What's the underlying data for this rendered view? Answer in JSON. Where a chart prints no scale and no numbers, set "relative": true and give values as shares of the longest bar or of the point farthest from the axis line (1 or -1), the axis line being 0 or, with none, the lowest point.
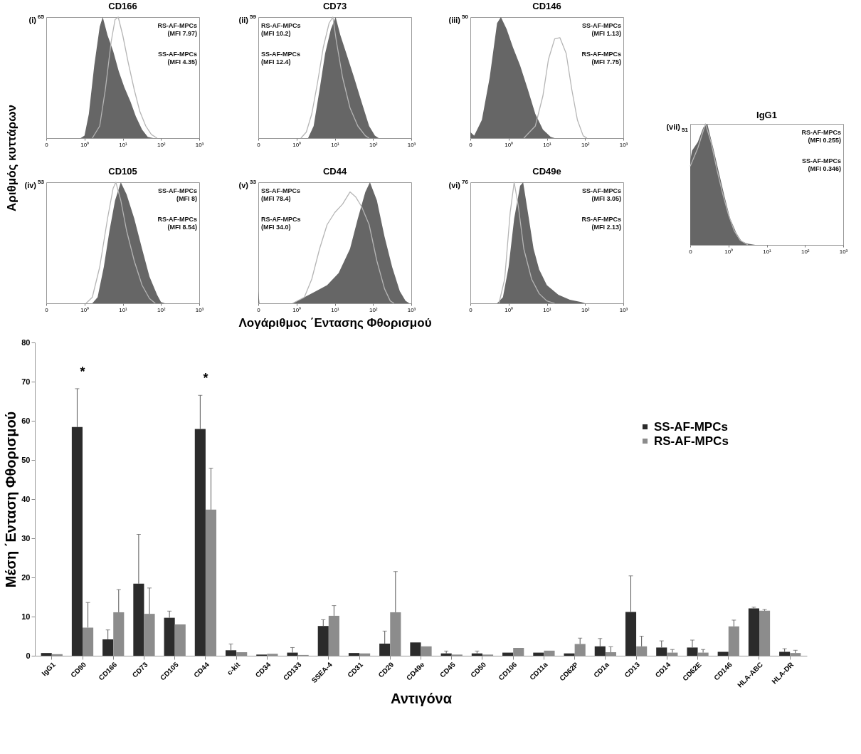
{
  "chart_data": [
    {
      "type": "area",
      "title": "CD166",
      "relative": true,
      "log": "x",
      "ylabel": "Αριθμός κυττάρων",
      "xlim": [
        0.1,
        1000
      ],
      "xticks": [
        {
          "value": 0.1,
          "label": "0"
        },
        {
          "value": 1,
          "label": "10⁰"
        },
        {
          "value": 10,
          "label": "10¹"
        },
        {
          "value": 100,
          "label": "10²"
        },
        {
          "value": 1000,
          "label": "10³"
        }
      ],
      "series": [
        {
          "color": "#666666",
          "x": [
            0.79,
            1,
            1.3,
            1.8,
            2.5,
            3,
            4,
            5.6,
            7.9,
            11,
            16,
            22,
            32,
            45,
            63
          ],
          "values": [
            0,
            0.02,
            0.2,
            0.6,
            0.92,
            1,
            0.85,
            0.72,
            0.55,
            0.42,
            0.3,
            0.18,
            0.07,
            0.01,
            0
          ]
        },
        {
          "type": "line",
          "color": "#b5b5b5",
          "x": [
            1.6,
            2.5,
            3.5,
            5,
            6.3,
            7.6,
            10,
            14,
            20,
            28,
            40,
            56,
            79
          ],
          "values": [
            0,
            0.1,
            0.4,
            0.8,
            0.98,
            1,
            0.85,
            0.62,
            0.4,
            0.22,
            0.1,
            0.03,
            0
          ]
        }
      ],
      "annotations": [
        "(i)$^{65}$",
        "RS-AF-MPCs\n(MFI 7.97)",
        "SS-AF-MPCs\n(MFI 4.35)"
      ]
    },
    {
      "type": "area",
      "title": "CD73",
      "relative": true,
      "log": "x",
      "xlim": [
        0.1,
        1000
      ],
      "xticks": [
        {
          "value": 0.1,
          "label": "0"
        },
        {
          "value": 1,
          "label": "10⁰"
        },
        {
          "value": 10,
          "label": "10¹"
        },
        {
          "value": 100,
          "label": "10²"
        },
        {
          "value": 1000,
          "label": "10³"
        }
      ],
      "series": [
        {
          "color": "#666666",
          "x": [
            2,
            2.8,
            4,
            5.6,
            7.9,
            10.5,
            14,
            20,
            32,
            50,
            79,
            112,
            141
          ],
          "values": [
            0,
            0.1,
            0.4,
            0.7,
            0.9,
            1,
            0.85,
            0.7,
            0.5,
            0.3,
            0.1,
            0.02,
            0
          ]
        },
        {
          "type": "line",
          "color": "#b5b5b5",
          "x": [
            1.3,
            1.8,
            2.5,
            3.5,
            5,
            7.1,
            8.9,
            11,
            16,
            25,
            40,
            63,
            79
          ],
          "values": [
            0,
            0.05,
            0.2,
            0.45,
            0.75,
            0.95,
            1,
            0.8,
            0.5,
            0.25,
            0.1,
            0.02,
            0
          ]
        }
      ],
      "annotations": [
        "(ii)$^{59}$",
        "RS-AF-MPCs\n(MFI 10.2)",
        "SS-AF-MPCs\n(MFI 12.4)"
      ]
    },
    {
      "type": "area",
      "title": "CD146",
      "relative": true,
      "log": "x",
      "xlim": [
        0.1,
        1000
      ],
      "xticks": [
        {
          "value": 0.1,
          "label": "0"
        },
        {
          "value": 1,
          "label": "10⁰"
        },
        {
          "value": 10,
          "label": "10¹"
        },
        {
          "value": 100,
          "label": "10²"
        },
        {
          "value": 1000,
          "label": "10³"
        }
      ],
      "series": [
        {
          "color": "#666666",
          "x": [
            0.1,
            0.126,
            0.2,
            0.32,
            0.5,
            0.63,
            0.89,
            1.3,
            2,
            3.2,
            5,
            7.9,
            12.6,
            16
          ],
          "values": [
            0.05,
            0.02,
            0.15,
            0.5,
            0.95,
            1,
            0.9,
            0.75,
            0.6,
            0.4,
            0.2,
            0.07,
            0.01,
            0
          ]
        },
        {
          "type": "line",
          "color": "#b5b5b5",
          "x": [
            2.5,
            5,
            7.9,
            11,
            16,
            22,
            32,
            45,
            63,
            89,
            112
          ],
          "values": [
            0,
            0.1,
            0.35,
            0.65,
            0.82,
            0.83,
            0.7,
            0.4,
            0.15,
            0.02,
            0
          ]
        }
      ],
      "annotations": [
        "(iii)$^{50}$",
        "SS-AF-MPCs\n(MFI 1.13)",
        "RS-AF-MPCs\n(MFI 7.75)"
      ]
    },
    {
      "type": "area",
      "title": "CD105",
      "relative": true,
      "log": "x",
      "xlim": [
        0.1,
        1000
      ],
      "xticks": [
        {
          "value": 0.1,
          "label": "0"
        },
        {
          "value": 1,
          "label": "10⁰"
        },
        {
          "value": 10,
          "label": "10¹"
        },
        {
          "value": 100,
          "label": "10²"
        },
        {
          "value": 1000,
          "label": "10³"
        }
      ],
      "series": [
        {
          "color": "#666666",
          "x": [
            1.6,
            2.2,
            3.2,
            4.5,
            6.3,
            8.9,
            12.6,
            20,
            32,
            50,
            79,
            100,
            126
          ],
          "values": [
            0,
            0.05,
            0.3,
            0.6,
            0.85,
            1,
            0.9,
            0.7,
            0.45,
            0.22,
            0.07,
            0.01,
            0
          ]
        },
        {
          "type": "line",
          "color": "#b5b5b5",
          "x": [
            1.1,
            1.6,
            2.5,
            4,
            5.6,
            6.6,
            8.9,
            12.6,
            20,
            32,
            50,
            71
          ],
          "values": [
            0,
            0.05,
            0.3,
            0.7,
            0.95,
            1,
            0.85,
            0.6,
            0.35,
            0.15,
            0.04,
            0
          ]
        }
      ],
      "annotations": [
        "(iv)$^{53}$",
        "SS-AF-MPCs\n(MFI 8)",
        "RS-AF-MPCs\n(MFI 8.54)"
      ]
    },
    {
      "type": "area",
      "title": "CD44",
      "relative": true,
      "log": "x",
      "xlabel": "Λογάριθμος ΄Εντασης Φθορισμού",
      "xlim": [
        0.1,
        1000
      ],
      "xticks": [
        {
          "value": 0.1,
          "label": "0"
        },
        {
          "value": 1,
          "label": "10⁰"
        },
        {
          "value": 10,
          "label": "10¹"
        },
        {
          "value": 100,
          "label": "10²"
        },
        {
          "value": 1000,
          "label": "10³"
        }
      ],
      "series": [
        {
          "color": "#666666",
          "x": [
            0.1,
            0.107,
            0.79,
            1.6,
            3.2,
            6.3,
            12.6,
            25,
            40,
            63,
            83,
            126,
            200,
            316,
            501,
            708,
            891
          ],
          "values": [
            0.1,
            0,
            0,
            0.05,
            0.1,
            0.15,
            0.25,
            0.45,
            0.7,
            0.92,
            1,
            0.85,
            0.55,
            0.3,
            0.1,
            0.02,
            0
          ]
        },
        {
          "type": "line",
          "color": "#b5b5b5",
          "x": [
            0.79,
            1.6,
            2.5,
            4,
            6.3,
            10,
            16,
            25,
            35,
            50,
            79,
            126,
            200,
            282,
            355
          ],
          "values": [
            0,
            0.05,
            0.2,
            0.45,
            0.65,
            0.75,
            0.82,
            0.92,
            0.88,
            0.8,
            0.65,
            0.35,
            0.12,
            0.02,
            0
          ]
        }
      ],
      "annotations": [
        "(v)$^{33}$",
        "SS-AF-MPCs\n(MFI 78.4)",
        "RS-AF-MPCs\n(MFI 34.0)"
      ]
    },
    {
      "type": "area",
      "title": "CD49e",
      "relative": true,
      "log": "x",
      "xlim": [
        0.1,
        1000
      ],
      "xticks": [
        {
          "value": 0.1,
          "label": "0"
        },
        {
          "value": 1,
          "label": "10⁰"
        },
        {
          "value": 10,
          "label": "10¹"
        },
        {
          "value": 100,
          "label": "10²"
        },
        {
          "value": 1000,
          "label": "10³"
        }
      ],
      "series": [
        {
          "color": "#666666",
          "x": [
            0.5,
            0.71,
            1,
            1.4,
            2,
            2.4,
            3.2,
            4.5,
            6.3,
            10,
            20,
            40,
            79,
            100
          ],
          "values": [
            0,
            0.05,
            0.3,
            0.7,
            0.97,
            1,
            0.75,
            0.45,
            0.28,
            0.15,
            0.07,
            0.03,
            0.01,
            0
          ]
        },
        {
          "type": "line",
          "color": "#b5b5b5",
          "x": [
            0.56,
            0.79,
            1.1,
            1.4,
            1.8,
            2.5,
            4,
            6.3,
            10,
            16
          ],
          "values": [
            0,
            0.2,
            0.75,
            1,
            0.8,
            0.45,
            0.2,
            0.08,
            0.02,
            0
          ]
        }
      ],
      "annotations": [
        "(vi)$^{76}$",
        "SS-AF-MPCs\n(MFI 3.05)",
        "RS-AF-MPCs\n(MFI 2.13)"
      ]
    },
    {
      "type": "area",
      "title": "IgG1",
      "relative": true,
      "log": "x",
      "xlim": [
        0.1,
        1000
      ],
      "xticks": [
        {
          "value": 0.1,
          "label": "0"
        },
        {
          "value": 1,
          "label": "10⁰"
        },
        {
          "value": 10,
          "label": "10¹"
        },
        {
          "value": 100,
          "label": "10²"
        },
        {
          "value": 1000,
          "label": "10³"
        }
      ],
      "series": [
        {
          "color": "#666666",
          "x": [
            0.1,
            0.112,
            0.158,
            0.22,
            0.28,
            0.4,
            0.56,
            0.79,
            1.1,
            1.6,
            2.2,
            3.2,
            5
          ],
          "values": [
            0.7,
            0.78,
            0.85,
            0.97,
            1,
            0.8,
            0.6,
            0.4,
            0.22,
            0.1,
            0.03,
            0.01,
            0
          ]
        },
        {
          "type": "line",
          "color": "#b5b5b5",
          "x": [
            0.1,
            0.158,
            0.25,
            0.35,
            0.5,
            0.71,
            1,
            1.4,
            2,
            3.2
          ],
          "values": [
            0.65,
            0.8,
            1,
            0.85,
            0.62,
            0.42,
            0.25,
            0.12,
            0.04,
            0
          ]
        }
      ],
      "annotations": [
        "(vii)$_{51}$",
        "RS-AF-MPCs\n(MFI 0.255)",
        "SS-AF-MPCs\n(MFI 0.346)"
      ]
    },
    {
      "type": "bar",
      "xlabel": "Αντιγόνα",
      "ylabel": "Μέση ΄Ενταση Φθορισμού",
      "ylim": [
        0,
        80
      ],
      "yticks": [
        0,
        10,
        20,
        30,
        40,
        50,
        60,
        70,
        80
      ],
      "legend": "top right",
      "categories": [
        "IgG1",
        "CD90",
        "CD166",
        "CD73",
        "CD105",
        "CD44",
        "c-kit",
        "CD34",
        "CD133",
        "SSEA-4",
        "CD31",
        "CD29",
        "CD49e",
        "CD45",
        "CD50",
        "CD106",
        "CD11a",
        "CD62P",
        "CD1a",
        "CD13",
        "CD14",
        "CD62E",
        "CD146",
        "HLA-ABC",
        "HLA-DR"
      ],
      "series": [
        {
          "name": "SS-AF-MPCs",
          "color": "#2b2b2b",
          "values": [
            0.7,
            58.4,
            4.2,
            18.4,
            9.7,
            57.9,
            1.4,
            0.3,
            0.8,
            7.6,
            0.7,
            3.1,
            3.4,
            0.6,
            0.6,
            0.8,
            0.8,
            0.6,
            2.4,
            11.2,
            2.1,
            2.1,
            1.0,
            12.1,
            1.0
          ],
          "errors": [
            null,
            [
              58.4,
              68.2
            ],
            [
              4.2,
              6.6
            ],
            [
              18.4,
              31
            ],
            [
              9.7,
              11.4
            ],
            [
              57.9,
              66.5
            ],
            [
              1.4,
              3.0
            ],
            null,
            [
              0.8,
              2.1
            ],
            [
              7.6,
              9.2
            ],
            null,
            [
              3.1,
              6.3
            ],
            null,
            [
              0.6,
              1.2
            ],
            [
              0.6,
              1.2
            ],
            null,
            null,
            null,
            [
              2.4,
              4.4
            ],
            [
              11.2,
              20.4
            ],
            [
              2.1,
              3.8
            ],
            [
              2.1,
              4.0
            ],
            null,
            [
              12.1,
              12.4
            ],
            [
              1.0,
              1.8
            ]
          ]
        },
        {
          "name": "RS-AF-MPCs",
          "color": "#8c8c8c",
          "values": [
            0.4,
            7.2,
            11.1,
            10.7,
            8.0,
            37.3,
            0.9,
            0.5,
            0.2,
            10.2,
            0.6,
            11.1,
            2.4,
            0.3,
            0.3,
            2.0,
            1.3,
            3.0,
            0.9,
            2.4,
            0.8,
            0.8,
            7.5,
            11.5,
            0.7
          ],
          "errors": [
            null,
            [
              7.2,
              13.6
            ],
            [
              11.1,
              16.9
            ],
            [
              10.7,
              17.3
            ],
            null,
            [
              37.3,
              47.9
            ],
            null,
            null,
            null,
            [
              10.2,
              12.8
            ],
            null,
            [
              11.1,
              21.5
            ],
            null,
            null,
            null,
            null,
            null,
            [
              3.0,
              4.5
            ],
            [
              0.9,
              2.3
            ],
            [
              2.4,
              5.0
            ],
            [
              0.8,
              1.6
            ],
            [
              0.8,
              1.6
            ],
            [
              7.5,
              9.1
            ],
            [
              11.5,
              11.8
            ],
            [
              0.7,
              1.4
            ]
          ]
        }
      ],
      "annotations": [
        {
          "text": "*",
          "x": "CD90",
          "y": 68.2
        },
        {
          "text": "*",
          "x": "CD44",
          "y": 66.5
        }
      ]
    }
  ]
}
